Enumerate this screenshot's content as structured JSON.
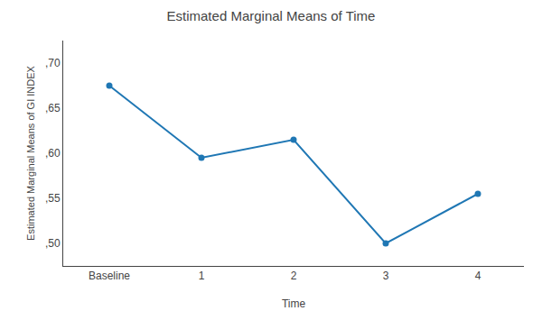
{
  "chart_data": {
    "type": "line",
    "title": "Estimated Marginal Means of Time",
    "x_label": "Time",
    "y_label": "Estimated Marginal Means of GI INDEX",
    "x": [
      0,
      1,
      2,
      3,
      4
    ],
    "values": [
      0.675,
      0.595,
      0.615,
      0.5,
      0.555
    ],
    "xlim": [
      -0.5,
      4.5
    ],
    "xticks": [
      {
        "value": 0,
        "label": "Baseline"
      },
      1,
      2,
      3,
      4
    ],
    "ylim": [
      0.475,
      0.725
    ],
    "yticks": [
      {
        "value": 0.5,
        "label": ",50"
      },
      {
        "value": 0.55,
        "label": ",55"
      },
      {
        "value": 0.6,
        "label": ",60"
      },
      {
        "value": 0.65,
        "label": ",65"
      },
      {
        "value": 0.7,
        "label": ",70"
      }
    ],
    "marker": "circle",
    "grid": false
  }
}
